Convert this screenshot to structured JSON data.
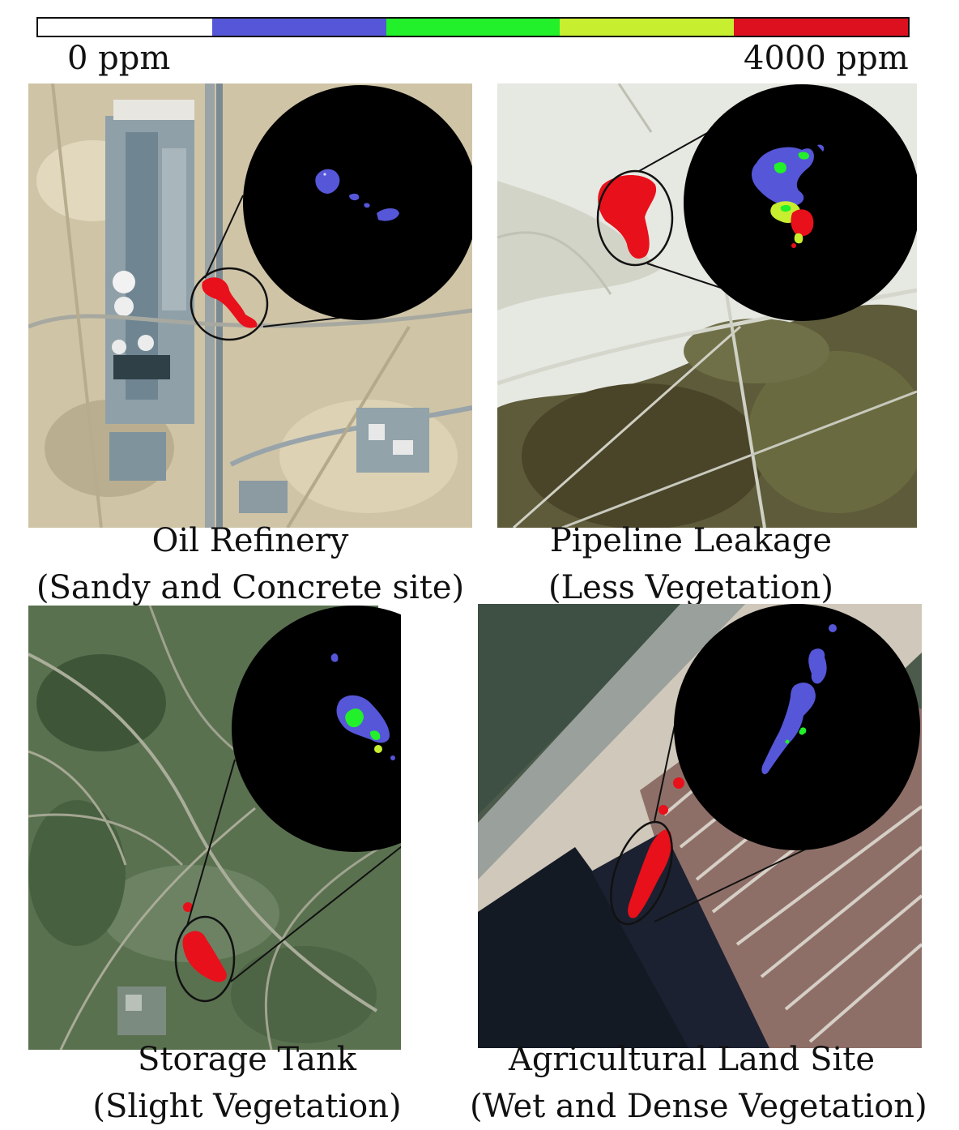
{
  "colorbar": {
    "min_label": "0 ppm",
    "max_label": "4000 ppm",
    "colors": [
      "#ffffff",
      "#5656d8",
      "#22f02a",
      "#c8ee30",
      "#dd1020"
    ]
  },
  "panels": [
    {
      "title": "Oil Refinery",
      "subtitle": "(Sandy and Concrete site)",
      "terrain": "sandy-concrete"
    },
    {
      "title": "Pipeline Leakage",
      "subtitle": "(Less Vegetation)",
      "terrain": "less-vegetation"
    },
    {
      "title": "Storage Tank",
      "subtitle": "(Slight Vegetation)",
      "terrain": "slight-vegetation"
    },
    {
      "title": "Agricultural Land Site",
      "subtitle": "(Wet and Dense Vegetation)",
      "terrain": "wet-dense-vegetation"
    }
  ],
  "colors": {
    "plume": "#e8101a",
    "low_concentration": "#5656d8",
    "mid_concentration": "#22f02a",
    "high_concentration": "#c8ee30",
    "zoom_background": "#000000"
  }
}
